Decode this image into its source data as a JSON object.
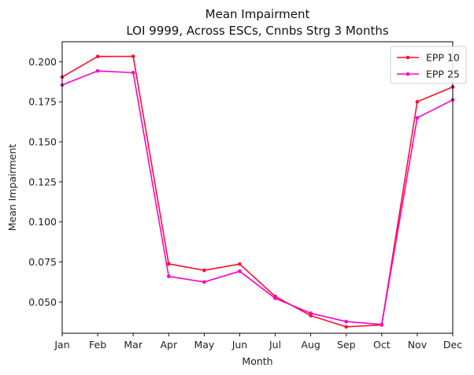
{
  "chart_data": {
    "type": "line",
    "title": "Mean Impairment",
    "subtitle": "LOI 9999, Across ESCs, Cnnbs Strg 3 Months",
    "xlabel": "Month",
    "ylabel": "Mean Impairment",
    "categories": [
      "Jan",
      "Feb",
      "Mar",
      "Apr",
      "May",
      "Jun",
      "Jul",
      "Aug",
      "Sep",
      "Oct",
      "Nov",
      "Dec"
    ],
    "yticks": [
      "0.050",
      "0.075",
      "0.100",
      "0.125",
      "0.150",
      "0.175",
      "0.200"
    ],
    "ylim": [
      0.0305,
      0.2125
    ],
    "grid": false,
    "legend_position": "top-right",
    "series": [
      {
        "name": "EPP 10",
        "color": "#ff0d2d",
        "values": [
          0.1905,
          0.2033,
          0.2034,
          0.0738,
          0.0698,
          0.0737,
          0.0535,
          0.0415,
          0.0345,
          0.0357,
          0.175,
          0.1843
        ]
      },
      {
        "name": "EPP 25",
        "color": "#ff00cc",
        "values": [
          0.1855,
          0.1943,
          0.1932,
          0.066,
          0.0625,
          0.0692,
          0.0523,
          0.043,
          0.0378,
          0.036,
          0.165,
          0.1762
        ]
      }
    ]
  }
}
